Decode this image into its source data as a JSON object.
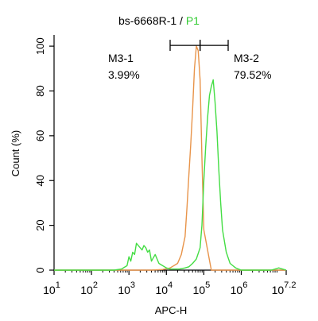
{
  "chart_data": {
    "type": "line",
    "title": {
      "main": "bs-6668R-1",
      "separator": " / ",
      "gate": "P1"
    },
    "xlabel": "APC-H",
    "ylabel": "Count  (%)",
    "x_scale": "log10",
    "xlim": [
      1,
      7.2
    ],
    "ylim": [
      0,
      105
    ],
    "x_ticks": [
      {
        "exp": 1,
        "base": "10",
        "sup": "1"
      },
      {
        "exp": 2,
        "base": "10",
        "sup": "2"
      },
      {
        "exp": 3,
        "base": "10",
        "sup": "3"
      },
      {
        "exp": 4,
        "base": "10",
        "sup": "4"
      },
      {
        "exp": 5,
        "base": "10",
        "sup": "5"
      },
      {
        "exp": 6,
        "base": "10",
        "sup": "6"
      },
      {
        "exp": 7.2,
        "base": "10",
        "sup": "7.2"
      }
    ],
    "y_ticks": [
      0,
      20,
      40,
      60,
      80,
      100
    ],
    "grid": false,
    "series": [
      {
        "color": "#e8944a",
        "x_log10": [
          1.0,
          3.6,
          3.9,
          4.1,
          4.3,
          4.4,
          4.5,
          4.55,
          4.6,
          4.65,
          4.7,
          4.75,
          4.8,
          4.85,
          4.9,
          4.95,
          5.0,
          5.2,
          6.0,
          7.2
        ],
        "y": [
          0,
          0,
          0.3,
          1,
          3,
          7,
          15,
          28,
          42,
          56,
          72,
          90,
          100,
          98,
          85,
          50,
          18,
          0,
          0,
          0
        ]
      },
      {
        "color": "#44dd44",
        "x_log10": [
          1.0,
          2.6,
          2.8,
          2.95,
          3.0,
          3.05,
          3.1,
          3.15,
          3.2,
          3.3,
          3.35,
          3.4,
          3.45,
          3.5,
          3.55,
          3.6,
          3.7,
          3.8,
          3.9,
          4.0,
          4.1,
          4.2,
          4.35,
          4.5,
          4.6,
          4.7,
          4.8,
          4.9,
          4.95,
          5.0,
          5.05,
          5.1,
          5.15,
          5.2,
          5.25,
          5.3,
          5.35,
          5.4,
          5.45,
          5.5,
          5.6,
          5.7,
          5.85,
          6.0,
          6.4,
          6.8,
          7.0,
          7.1,
          7.2
        ],
        "y": [
          0,
          0,
          0.5,
          2,
          6,
          4,
          8,
          7,
          12,
          10,
          9,
          11,
          10,
          8,
          9,
          4,
          7,
          3,
          2,
          1,
          0.5,
          0.5,
          0.5,
          1,
          1.5,
          3,
          5,
          10,
          20,
          40,
          55,
          68,
          78,
          82,
          85,
          75,
          62,
          45,
          30,
          18,
          8,
          3,
          1,
          0,
          0,
          0,
          1,
          0.5,
          0
        ]
      }
    ],
    "gates": [
      {
        "name": "M3-1",
        "percent": "3.99%",
        "x_start": 4.1,
        "x_end": 4.9,
        "y": 100
      },
      {
        "name": "M3-2",
        "percent": "79.52%",
        "x_start": 4.9,
        "x_end": 5.65,
        "y": 100
      }
    ]
  }
}
